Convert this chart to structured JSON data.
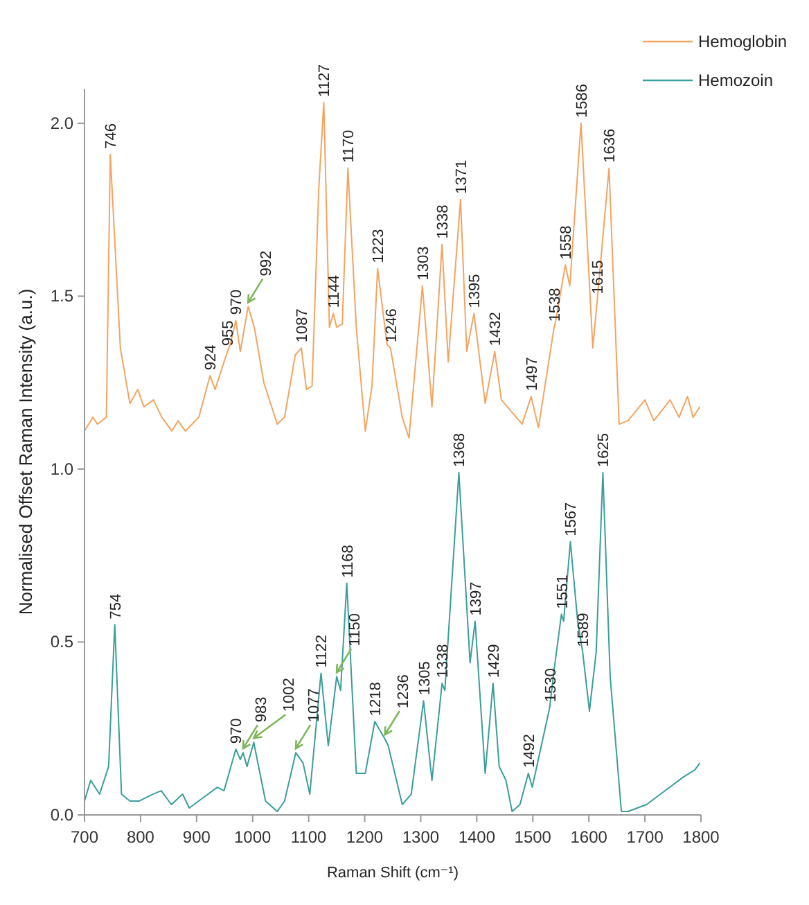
{
  "chart_data": {
    "type": "line",
    "xlabel": "Raman Shift (cm⁻¹)",
    "ylabel": "Normalised Offset Raman Intensity (a.u.)",
    "xlim": [
      700,
      1800
    ],
    "xticks": [
      700,
      800,
      900,
      1000,
      1100,
      1200,
      1300,
      1400,
      1500,
      1600,
      1700,
      1800
    ],
    "ylim": [
      0,
      2.1
    ],
    "yticks": [
      {
        "value": 0,
        "label": "0.0"
      },
      {
        "value": 0.5,
        "label": "0.5"
      },
      {
        "value": 1,
        "label": "1.0"
      },
      {
        "value": 1.5,
        "label": "1.5"
      },
      {
        "value": 2,
        "label": "2.0"
      }
    ],
    "grid": false,
    "legend": "top right",
    "marker": "none",
    "line_style": "solid",
    "series": [
      {
        "name": "Hemoglobin",
        "color": "#f4a460",
        "x": [
          700,
          715,
          723,
          739,
          746,
          764,
          781,
          795,
          806,
          823,
          838,
          856,
          867,
          880,
          904,
          924,
          933,
          955,
          960,
          970,
          978,
          992,
          1003,
          1020,
          1044,
          1057,
          1076,
          1087,
          1096,
          1106,
          1118,
          1127,
          1137,
          1144,
          1150,
          1160,
          1170,
          1185,
          1201,
          1213,
          1223,
          1240,
          1246,
          1267,
          1279,
          1303,
          1320,
          1338,
          1349,
          1371,
          1382,
          1395,
          1415,
          1432,
          1444,
          1481,
          1497,
          1510,
          1538,
          1541,
          1558,
          1566,
          1586,
          1607,
          1615,
          1636,
          1654,
          1670,
          1700,
          1716,
          1745,
          1761,
          1776,
          1786,
          1798
        ],
        "values": [
          1.11,
          1.15,
          1.13,
          1.15,
          1.91,
          1.35,
          1.19,
          1.23,
          1.18,
          1.2,
          1.15,
          1.11,
          1.14,
          1.11,
          1.15,
          1.27,
          1.23,
          1.34,
          1.36,
          1.43,
          1.34,
          1.47,
          1.41,
          1.25,
          1.13,
          1.15,
          1.33,
          1.35,
          1.23,
          1.24,
          1.81,
          2.06,
          1.41,
          1.45,
          1.41,
          1.42,
          1.87,
          1.41,
          1.11,
          1.24,
          1.58,
          1.36,
          1.35,
          1.15,
          1.09,
          1.53,
          1.18,
          1.65,
          1.31,
          1.78,
          1.34,
          1.45,
          1.19,
          1.34,
          1.2,
          1.13,
          1.21,
          1.12,
          1.41,
          1.43,
          1.59,
          1.53,
          2.0,
          1.35,
          1.49,
          1.87,
          1.13,
          1.14,
          1.2,
          1.14,
          1.2,
          1.15,
          1.21,
          1.15,
          1.18
        ]
      },
      {
        "name": "Hemozoin",
        "color": "#3a9e9a",
        "x": [
          700,
          711,
          727,
          743,
          754,
          766,
          781,
          797,
          822,
          837,
          855,
          875,
          887,
          912,
          937,
          949,
          970,
          978,
          983,
          990,
          1002,
          1023,
          1044,
          1057,
          1077,
          1090,
          1102,
          1122,
          1135,
          1150,
          1157,
          1168,
          1185,
          1201,
          1218,
          1236,
          1242,
          1267,
          1283,
          1305,
          1320,
          1338,
          1343,
          1368,
          1388,
          1397,
          1415,
          1429,
          1440,
          1452,
          1463,
          1477,
          1492,
          1499,
          1530,
          1538,
          1551,
          1555,
          1567,
          1580,
          1589,
          1601,
          1613,
          1625,
          1638,
          1658,
          1670,
          1703,
          1736,
          1769,
          1789,
          1798
        ],
        "values": [
          0.04,
          0.1,
          0.06,
          0.14,
          0.55,
          0.06,
          0.04,
          0.04,
          0.06,
          0.07,
          0.03,
          0.06,
          0.02,
          0.05,
          0.08,
          0.07,
          0.19,
          0.16,
          0.18,
          0.14,
          0.21,
          0.04,
          0.01,
          0.04,
          0.18,
          0.15,
          0.06,
          0.41,
          0.2,
          0.4,
          0.36,
          0.67,
          0.12,
          0.12,
          0.27,
          0.22,
          0.2,
          0.03,
          0.06,
          0.33,
          0.1,
          0.38,
          0.36,
          0.99,
          0.44,
          0.56,
          0.12,
          0.38,
          0.14,
          0.1,
          0.01,
          0.03,
          0.12,
          0.08,
          0.31,
          0.42,
          0.58,
          0.56,
          0.79,
          0.56,
          0.47,
          0.3,
          0.47,
          0.99,
          0.4,
          0.01,
          0.01,
          0.03,
          0.07,
          0.11,
          0.13,
          0.15
        ]
      }
    ],
    "annotations": [
      {
        "text": "746",
        "x": 746,
        "y": 1.91
      },
      {
        "text": "924",
        "x": 924,
        "y": 1.27
      },
      {
        "text": "955",
        "x": 955,
        "y": 1.34
      },
      {
        "text": "970",
        "x": 970,
        "y": 1.43
      },
      {
        "text": "992",
        "x": 992,
        "y": 1.47
      },
      {
        "text": "1087",
        "x": 1087,
        "y": 1.35
      },
      {
        "text": "1127",
        "x": 1127,
        "y": 2.06
      },
      {
        "text": "1144",
        "x": 1144,
        "y": 1.45
      },
      {
        "text": "1170",
        "x": 1170,
        "y": 1.87
      },
      {
        "text": "1223",
        "x": 1223,
        "y": 1.58
      },
      {
        "text": "1246",
        "x": 1246,
        "y": 1.35
      },
      {
        "text": "1303",
        "x": 1303,
        "y": 1.53
      },
      {
        "text": "1338",
        "x": 1338,
        "y": 1.65
      },
      {
        "text": "1371",
        "x": 1371,
        "y": 1.78
      },
      {
        "text": "1395",
        "x": 1395,
        "y": 1.45
      },
      {
        "text": "1432",
        "x": 1432,
        "y": 1.34
      },
      {
        "text": "1497",
        "x": 1497,
        "y": 1.21
      },
      {
        "text": "1538",
        "x": 1538,
        "y": 1.41
      },
      {
        "text": "1558",
        "x": 1558,
        "y": 1.59
      },
      {
        "text": "1586",
        "x": 1586,
        "y": 2.0
      },
      {
        "text": "1615",
        "x": 1615,
        "y": 1.49
      },
      {
        "text": "1636",
        "x": 1636,
        "y": 1.87
      },
      {
        "text": "754",
        "x": 754,
        "y": 0.55
      },
      {
        "text": "970",
        "x": 970,
        "y": 0.19
      },
      {
        "text": "983",
        "x": 983,
        "y": 0.18
      },
      {
        "text": "1002",
        "x": 1002,
        "y": 0.21
      },
      {
        "text": "1077",
        "x": 1077,
        "y": 0.18
      },
      {
        "text": "1122",
        "x": 1122,
        "y": 0.41
      },
      {
        "text": "1150",
        "x": 1150,
        "y": 0.4
      },
      {
        "text": "1168",
        "x": 1168,
        "y": 0.67
      },
      {
        "text": "1218",
        "x": 1218,
        "y": 0.27
      },
      {
        "text": "1236",
        "x": 1236,
        "y": 0.22
      },
      {
        "text": "1305",
        "x": 1305,
        "y": 0.33
      },
      {
        "text": "1338",
        "x": 1338,
        "y": 0.38
      },
      {
        "text": "1368",
        "x": 1368,
        "y": 0.99
      },
      {
        "text": "1397",
        "x": 1397,
        "y": 0.56
      },
      {
        "text": "1429",
        "x": 1429,
        "y": 0.38
      },
      {
        "text": "1492",
        "x": 1492,
        "y": 0.12
      },
      {
        "text": "1530",
        "x": 1530,
        "y": 0.31
      },
      {
        "text": "1551",
        "x": 1551,
        "y": 0.58
      },
      {
        "text": "1567",
        "x": 1567,
        "y": 0.79
      },
      {
        "text": "1589",
        "x": 1589,
        "y": 0.47
      },
      {
        "text": "1625",
        "x": 1625,
        "y": 0.99
      }
    ]
  }
}
